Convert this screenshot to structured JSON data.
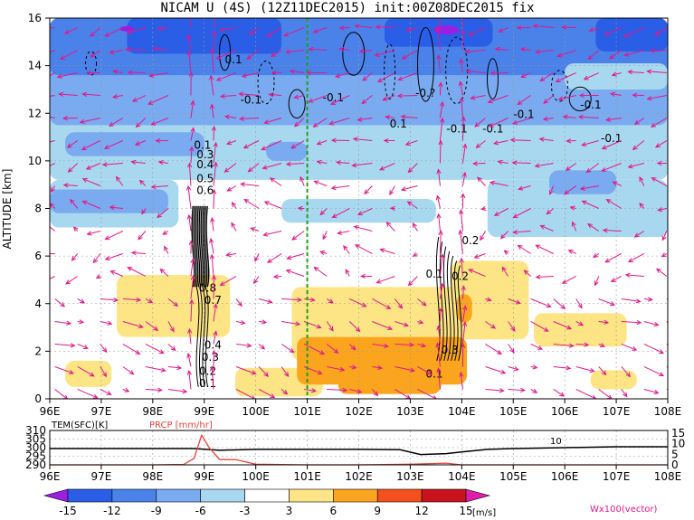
{
  "title": "NICAM U (4S) (12Z11DEC2015) init:00Z08DEC2015 fix",
  "colors": {
    "vector": "#e0198a",
    "precip": "#e8443a",
    "marker": "#1aa31a"
  },
  "chart_data": [
    {
      "type": "heatmap",
      "name": "cross-section",
      "ylabel": "ALTITUDE [km]",
      "xlim": [
        96,
        108
      ],
      "ylim": [
        0,
        16
      ],
      "x_ticks": [
        "96E",
        "97E",
        "98E",
        "99E",
        "100E",
        "101E",
        "102E",
        "103E",
        "104E",
        "105E",
        "106E",
        "107E",
        "108E"
      ],
      "y_ticks": [
        "0",
        "2",
        "4",
        "6",
        "8",
        "10",
        "12",
        "14",
        "16"
      ],
      "marker_line_x": 101,
      "contour_labels_left": [
        "0.1",
        "0.2",
        "0.3",
        "0.4",
        "0.7",
        "0.8",
        "0.6",
        "0.5",
        "0.4",
        "0.3",
        "0.1"
      ],
      "contour_labels_right": [
        "0.1",
        "0.3",
        "0.2",
        "0.2",
        "0.1"
      ],
      "contour_labels_upper": [
        "0.1",
        "-0.1",
        "-0.1",
        "0.1",
        "-0.1",
        "-0.1",
        "-0.1",
        "-0.1",
        "-0.1",
        "-0.?"
      ],
      "vector_label": "Wx100(vector)"
    },
    {
      "type": "line",
      "name": "surface-series",
      "series": [
        {
          "name": "TEM(SFC)[K]",
          "x": [
            96,
            97,
            98,
            98.8,
            99.3,
            100,
            101,
            102,
            102.8,
            103.2,
            103.7,
            104,
            104.5,
            105,
            106,
            107,
            108
          ],
          "y": [
            299.5,
            299.5,
            299.5,
            299.5,
            298.5,
            299,
            299,
            299,
            298.8,
            296,
            296.5,
            297.5,
            299,
            299.5,
            300,
            300.5,
            300.5
          ]
        },
        {
          "name": "PRCP [mm/hr]",
          "x": [
            96,
            97,
            98,
            98.6,
            98.8,
            98.95,
            99.1,
            99.3,
            99.6,
            100,
            101,
            102,
            103,
            103.7,
            104,
            105,
            106,
            107,
            108
          ],
          "y": [
            0,
            0,
            0,
            0.2,
            3,
            14,
            8,
            2.5,
            2.5,
            0.3,
            0,
            0,
            0.3,
            0.8,
            0,
            0,
            0,
            0,
            0
          ]
        }
      ],
      "left_ticks": [
        "310",
        "305",
        "300",
        "295",
        "290"
      ],
      "right_ticks": [
        "15",
        "10",
        "5",
        "0"
      ],
      "inline_label": "10"
    }
  ],
  "colorbar": {
    "ticks": [
      "-15",
      "-12",
      "-9",
      "-6",
      "-3",
      "3",
      "6",
      "9",
      "12",
      "15"
    ],
    "unit": "[m/s]",
    "colors": [
      "#9b1fe0",
      "#2b5ee6",
      "#4a82ea",
      "#7aaaf0",
      "#a8d8f0",
      "#ffffff",
      "#fde585",
      "#fba51e",
      "#f4501e",
      "#c9141e",
      "#e01ca8"
    ]
  }
}
